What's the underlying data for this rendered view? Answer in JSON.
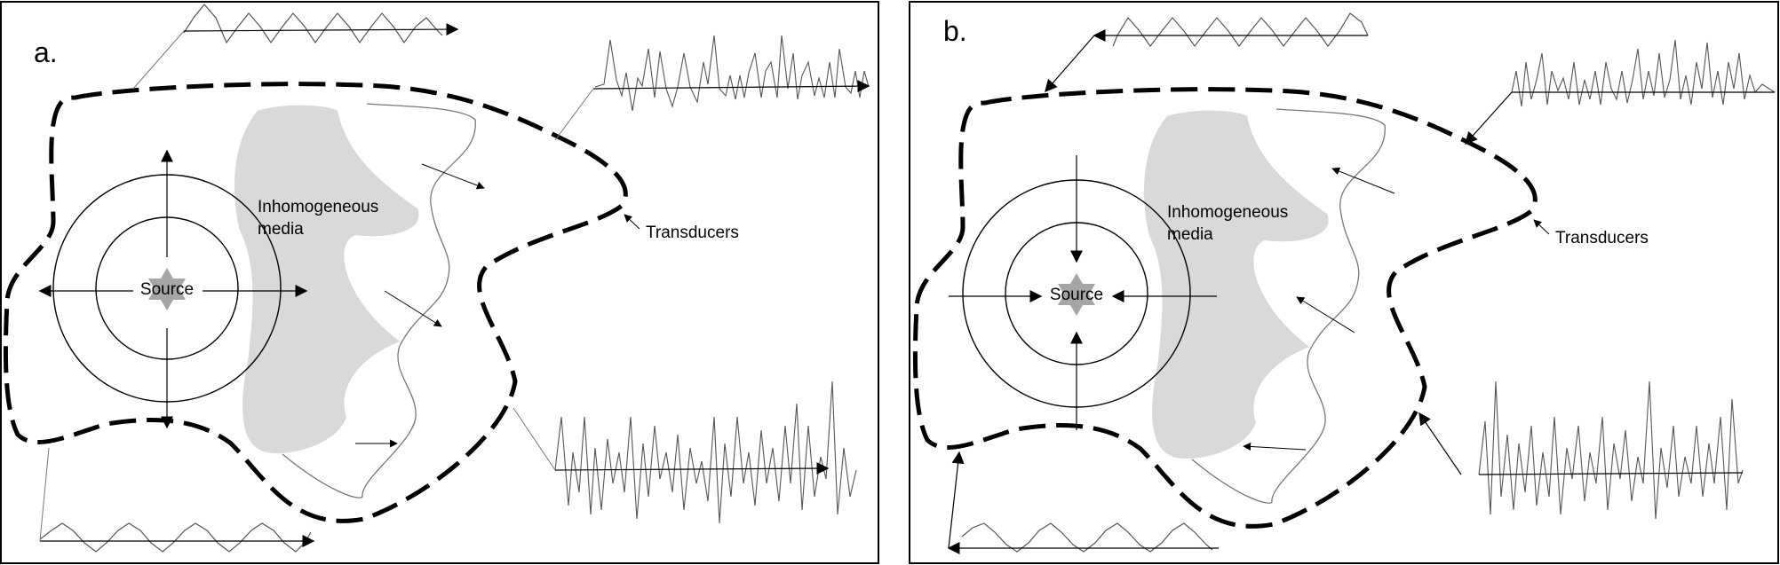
{
  "colors": {
    "border": "#000000",
    "media_fill": "#d9d9d9",
    "source_star": "#a6a6a6",
    "wave": "#555555"
  },
  "panels": [
    {
      "letter": "a.",
      "media_label_line1": "Inhomogeneous",
      "media_label_line2": "media",
      "source_label": "Source",
      "transducers_label": "Transducers",
      "direction": "forward-propagation"
    },
    {
      "letter": "b.",
      "media_label_line1": "Inhomogeneous",
      "media_label_line2": "media",
      "source_label": "Source",
      "transducers_label": "Transducers",
      "direction": "time-reversal"
    }
  ]
}
